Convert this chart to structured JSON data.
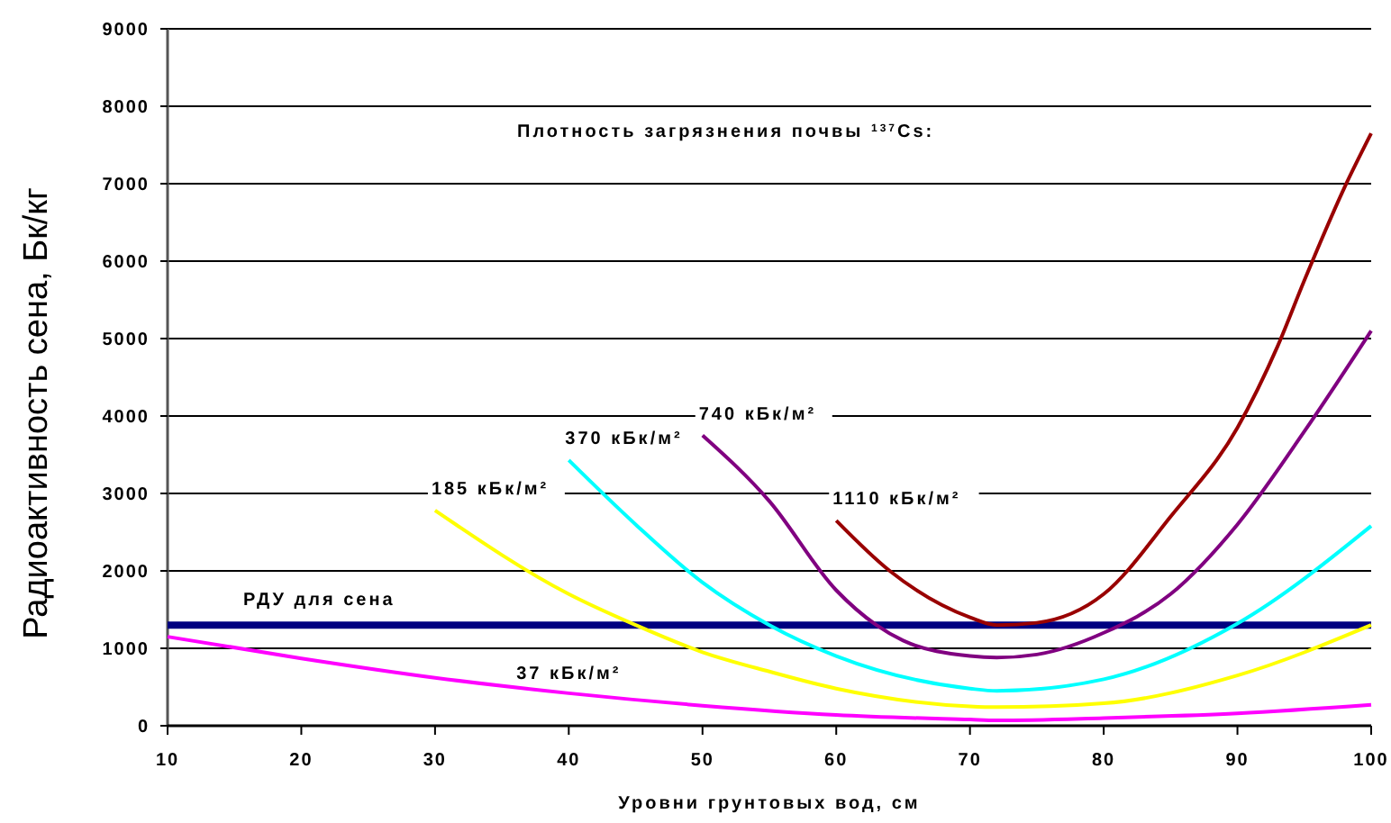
{
  "chart_data": {
    "type": "line",
    "xlabel": "Уровни грунтовых вод, см",
    "ylabel": "Радиоактивность сена, Бк/кг",
    "annotations": [
      "Плотность загрязнения почвы $^{137}$Cs:"
    ],
    "xlim": [
      10,
      100
    ],
    "xticks": [
      10,
      20,
      30,
      40,
      50,
      60,
      70,
      80,
      90,
      100
    ],
    "ylim": [
      0,
      9000
    ],
    "yticks": [
      0,
      1000,
      2000,
      3000,
      4000,
      5000,
      6000,
      7000,
      8000,
      9000
    ],
    "grid": "y",
    "legend": false,
    "marker": "none",
    "line_style": "solid",
    "ref_lines": [
      {
        "axis": "y",
        "value": 1300,
        "label": "РДУ для сена",
        "color": "#000080"
      }
    ],
    "series": [
      {
        "name": "37 кБк/м²",
        "color": "#ff00ff",
        "x": [
          10,
          20,
          30,
          40,
          50,
          60,
          70,
          72,
          80,
          90,
          100
        ],
        "values": [
          1150,
          870,
          620,
          420,
          260,
          140,
          80,
          70,
          100,
          160,
          270
        ]
      },
      {
        "name": "185 кБк/м²",
        "color": "#ffff00",
        "x": [
          30,
          40,
          45,
          50,
          55,
          60,
          70,
          72,
          80,
          90,
          100
        ],
        "values": [
          2780,
          1700,
          1300,
          950,
          700,
          480,
          250,
          240,
          290,
          650,
          1300
        ]
      },
      {
        "name": "370 кБк/м²",
        "color": "#00ffff",
        "x": [
          40,
          45,
          50,
          55,
          60,
          70,
          72,
          80,
          90,
          100
        ],
        "values": [
          3430,
          2600,
          1850,
          1300,
          900,
          480,
          450,
          600,
          1320,
          2580
        ]
      },
      {
        "name": "740 кБк/м²",
        "color": "#800080",
        "x": [
          50,
          55,
          60,
          63,
          65,
          70,
          72,
          75,
          80,
          85,
          90,
          95,
          100
        ],
        "values": [
          3750,
          2900,
          1750,
          1300,
          1100,
          900,
          880,
          920,
          1200,
          1700,
          2600,
          3800,
          5100
        ]
      },
      {
        "name": "1110 кБк/м²",
        "color": "#990000",
        "x": [
          60,
          64,
          70,
          72,
          75,
          80,
          85,
          90,
          93,
          95,
          98,
          100
        ],
        "values": [
          2650,
          2000,
          1400,
          1300,
          1330,
          1700,
          2700,
          3850,
          4900,
          5750,
          6950,
          7650
        ]
      }
    ]
  }
}
